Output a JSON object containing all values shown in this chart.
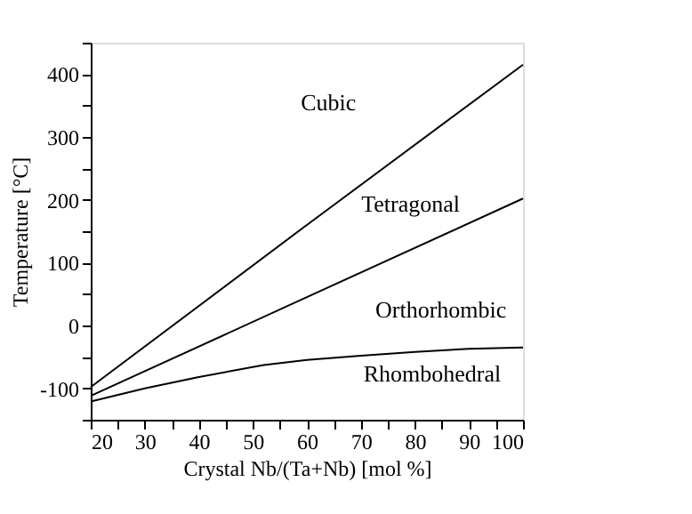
{
  "chart_data": {
    "type": "line",
    "xlabel": "Crystal Nb/(Ta+Nb) [mol %]",
    "ylabel": "Temperature [°C]",
    "xlim": [
      20,
      100
    ],
    "ylim": [
      -150,
      450
    ],
    "xticks": [
      20,
      {
        "value": 25,
        "label": null
      },
      30,
      {
        "value": 35,
        "label": null
      },
      40,
      {
        "value": 45,
        "label": null
      },
      50,
      {
        "value": 55,
        "label": null
      },
      60,
      {
        "value": 65,
        "label": null
      },
      70,
      {
        "value": 75,
        "label": null
      },
      80,
      {
        "value": 85,
        "label": null
      },
      90,
      {
        "value": 95,
        "label": null
      },
      100
    ],
    "yticks": [
      {
        "value": -150,
        "label": null
      },
      -100,
      {
        "value": -50,
        "label": null
      },
      0,
      {
        "value": 50,
        "label": null
      },
      100,
      {
        "value": 150,
        "label": null
      },
      200,
      {
        "value": 250,
        "label": null
      },
      300,
      {
        "value": 350,
        "label": null
      },
      400,
      {
        "value": 450,
        "label": null
      }
    ],
    "grid": false,
    "marker": "none",
    "line_style": "solid",
    "series": [
      {
        "color": "#000000",
        "x": [
          20,
          60,
          100
        ],
        "values": [
          -98,
          160,
          415
        ]
      },
      {
        "color": "#000000",
        "x": [
          20,
          60,
          100
        ],
        "values": [
          -112,
          45,
          202
        ]
      },
      {
        "color": "#000000",
        "x": [
          20,
          30,
          40,
          52,
          60,
          70,
          80,
          90,
          100
        ],
        "values": [
          -121,
          -100,
          -82,
          -63,
          -55,
          -48,
          -42,
          -37,
          -35
        ]
      }
    ],
    "annotations": [
      "Cubic",
      "Tetragonal",
      "Orthorhombic",
      "Rhombohedral"
    ]
  }
}
